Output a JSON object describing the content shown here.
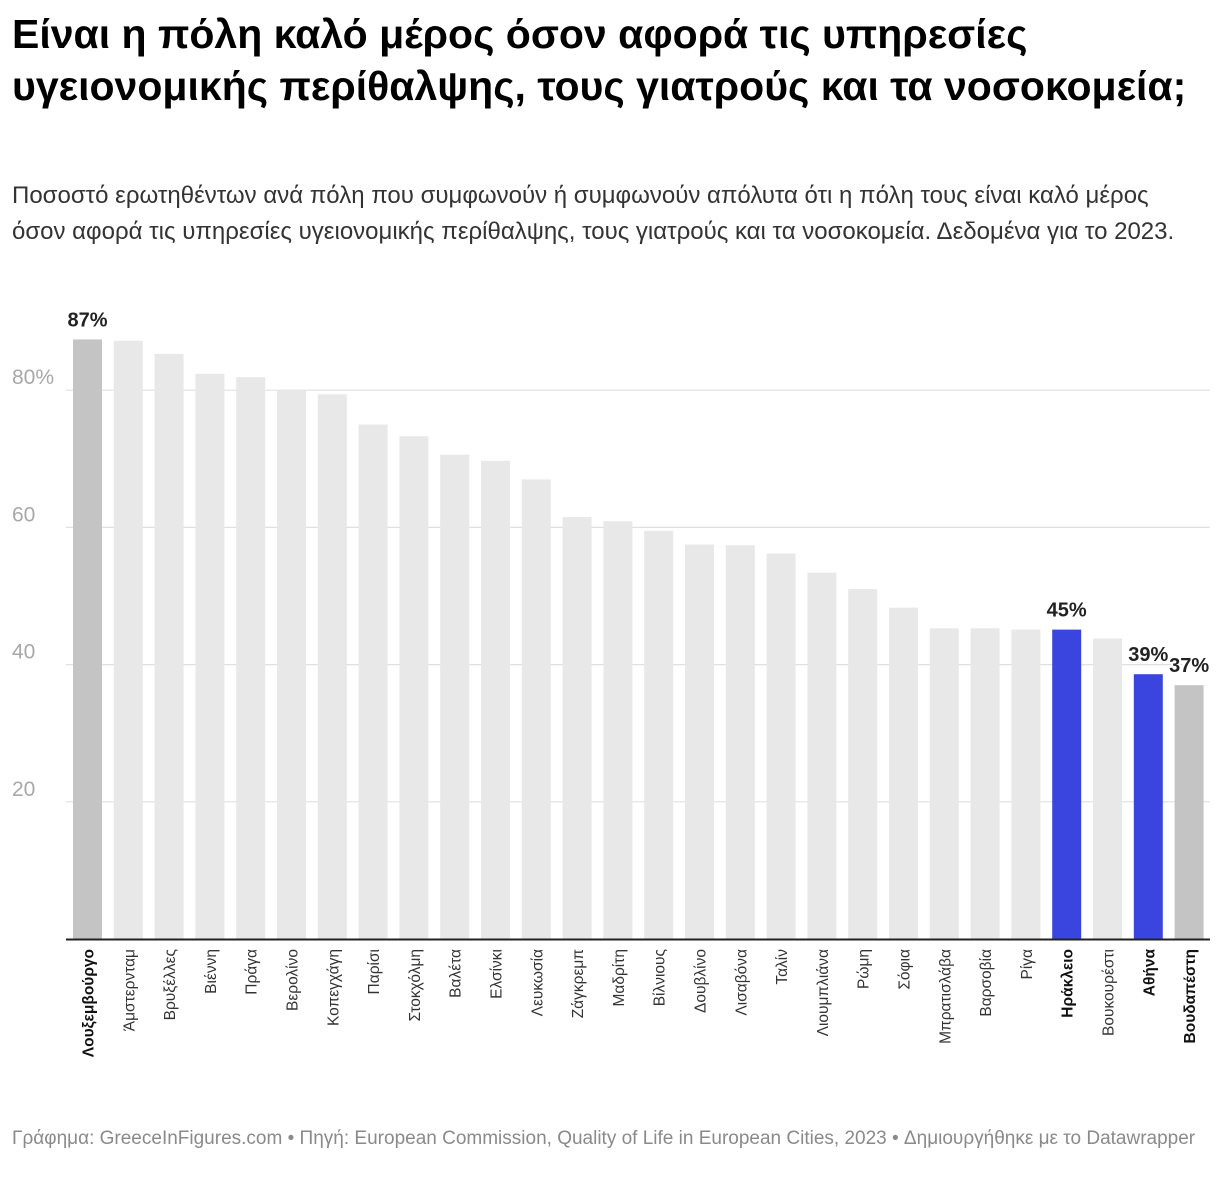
{
  "header": {
    "title": "Είναι η πόλη καλό μέρος όσον αφορά τις υπηρεσίες υγειονομικής περίθαλψης, τους γιατρούς και τα νοσοκομεία;",
    "subtitle": "Ποσοστό ερωτηθέντων ανά πόλη που συμφωνούν ή συμφωνούν απόλυτα ότι η πόλη τους είναι καλό μέρος όσον αφορά τις υπηρεσίες υγειονομικής περίθαλψης, τους γιατρούς και τα νοσοκομεία. Δεδομένα για το 2023."
  },
  "footer": {
    "text": "Γράφημα: GreeceInFigures.com • Πηγή: European Commission, Quality of Life in European Cities, 2023 • Δημιουργήθηκε με το Datawrapper"
  },
  "colors": {
    "default_bar": "#e8e8e8",
    "reference_bar": "#c4c4c4",
    "highlight_bar": "#3a45e0",
    "gridline": "#e0e0e0",
    "tick_label": "#a8a8a8",
    "axis": "#222222"
  },
  "chart_data": {
    "type": "bar",
    "ylim": [
      0,
      90
    ],
    "y_ticks": [
      20,
      40,
      60,
      80
    ],
    "y_tick_labels": [
      "20",
      "40",
      "60",
      "80%"
    ],
    "grid": true,
    "categories": [
      "Λουξεμβούργο",
      "Άμστερνταμ",
      "Βρυξέλλες",
      "Βιέννη",
      "Πράγα",
      "Βερολίνο",
      "Κοπεγχάγη",
      "Παρίσι",
      "Στοκχόλμη",
      "Βαλέτα",
      "Ελσίνκι",
      "Λευκωσία",
      "Ζάγκρεμπ",
      "Μαδρίτη",
      "Βίλνιους",
      "Δουβλίνο",
      "Λισαβόνα",
      "Ταλίν",
      "Λιουμπλιάνα",
      "Ρώμη",
      "Σόφια",
      "Μπρατισλάβα",
      "Βαρσοβία",
      "Ρίγα",
      "Ηράκλειο",
      "Βουκουρέστι",
      "Αθήνα",
      "Βουδαπέστη"
    ],
    "values": [
      87.4,
      87.2,
      85.3,
      82.4,
      81.9,
      80.0,
      79.4,
      75.0,
      73.3,
      70.6,
      69.7,
      67.0,
      61.5,
      60.9,
      59.5,
      57.5,
      57.4,
      56.2,
      53.4,
      51.0,
      48.3,
      45.3,
      45.3,
      45.1,
      45.1,
      43.8,
      38.6,
      37.0
    ],
    "bar_style": [
      "reference",
      "default",
      "default",
      "default",
      "default",
      "default",
      "default",
      "default",
      "default",
      "default",
      "default",
      "default",
      "default",
      "default",
      "default",
      "default",
      "default",
      "default",
      "default",
      "default",
      "default",
      "default",
      "default",
      "default",
      "highlight",
      "default",
      "highlight",
      "reference"
    ],
    "bold_labels": [
      "Λουξεμβούργο",
      "Ηράκλειο",
      "Αθήνα",
      "Βουδαπέστη"
    ],
    "data_labels": [
      {
        "category": "Λουξεμβούργο",
        "label": "87%"
      },
      {
        "category": "Ηράκλειο",
        "label": "45%"
      },
      {
        "category": "Αθήνα",
        "label": "39%"
      },
      {
        "category": "Βουδαπέστη",
        "label": "37%"
      }
    ]
  }
}
